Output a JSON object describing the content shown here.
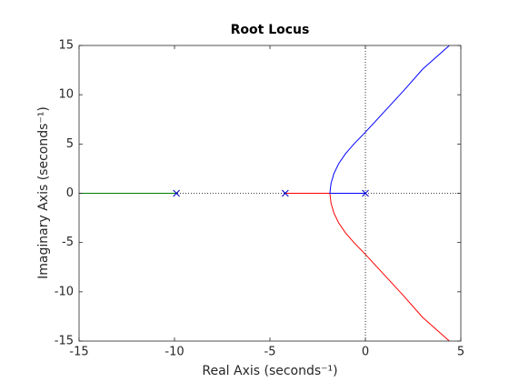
{
  "chart_data": {
    "type": "root-locus",
    "title": "Root Locus",
    "x_label": "Real Axis (seconds⁻¹)",
    "y_label": "Imaginary Axis (seconds⁻¹)",
    "xlim": [
      -15,
      5
    ],
    "ylim": [
      -15,
      15
    ],
    "xticks": [
      -15,
      -10,
      -5,
      0,
      5
    ],
    "yticks": [
      -15,
      -10,
      -5,
      0,
      5,
      10,
      15
    ],
    "grid": false,
    "origin_lines": true,
    "series": [
      {
        "color": "#008000",
        "x": [
          -9.9,
          -15
        ],
        "values": [
          0,
          0
        ]
      },
      {
        "color": "#ff0000",
        "x": [
          -4.2,
          -1.86,
          -1.8,
          -1.65,
          -1.4,
          -1.05,
          -0.6,
          0,
          1,
          2,
          3,
          4.4
        ],
        "values": [
          0,
          0,
          -1,
          -2,
          -3,
          -4,
          -5,
          -6.2,
          -8.3,
          -10.4,
          -12.6,
          -15
        ]
      },
      {
        "color": "#0000ff",
        "x": [
          0,
          -1.86,
          -1.8,
          -1.65,
          -1.4,
          -1.05,
          -0.6,
          0,
          1,
          2,
          3,
          4.4
        ],
        "values": [
          0,
          0,
          1,
          2,
          3,
          4,
          5,
          6.2,
          8.3,
          10.4,
          12.6,
          15
        ]
      }
    ],
    "poles": {
      "color": "#0000cd",
      "x": [
        -9.9,
        -4.2,
        0
      ],
      "values": [
        0,
        0,
        0
      ]
    }
  }
}
